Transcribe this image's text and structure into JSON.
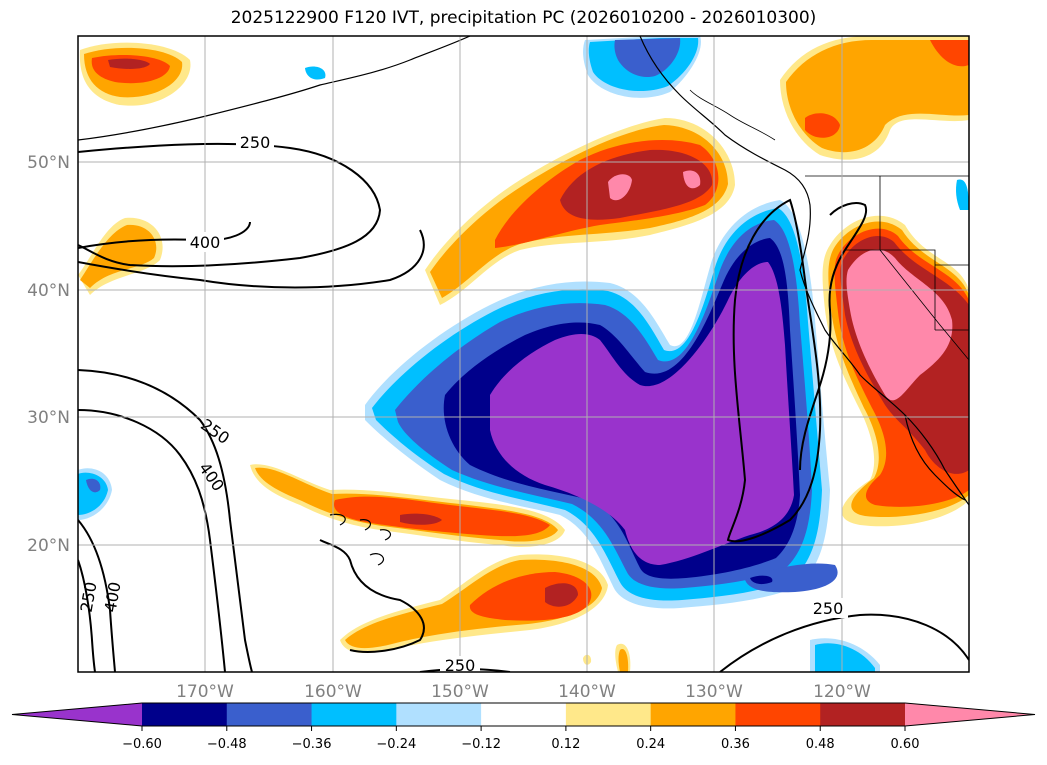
{
  "title": "2025122900 F120 IVT, precipitation PC (2026010200 - 2026010300)",
  "colors": {
    "purple": "#9933cc",
    "navy": "#00008b",
    "royal": "#3a5fcd",
    "sky": "#00bfff",
    "lightblue": "#b0e0ff",
    "yellow": "#ffe88a",
    "orange": "#ffa500",
    "redorange": "#ff4500",
    "firebrick": "#b22222",
    "pink": "#ff88aa",
    "grid": "#b0b0b0"
  },
  "lat_labels": [
    "50°N",
    "40°N",
    "30°N",
    "20°N"
  ],
  "lon_labels": [
    "170°W",
    "160°W",
    "150°W",
    "140°W",
    "130°W",
    "120°W"
  ],
  "contour_labels": [
    "250",
    "400",
    "250",
    "400",
    "250",
    "400",
    "250",
    "250"
  ],
  "colorbar": {
    "ticks": [
      "−0.60",
      "−0.48",
      "−0.36",
      "−0.24",
      "−0.12",
      "0.12",
      "0.24",
      "0.36",
      "0.48",
      "0.60"
    ],
    "bin_colors": [
      "#9933cc",
      "#00008b",
      "#3a5fcd",
      "#00bfff",
      "#b0e0ff",
      "#ffffff",
      "#ffe88a",
      "#ffa500",
      "#ff4500",
      "#b22222",
      "#ff88aa"
    ]
  }
}
